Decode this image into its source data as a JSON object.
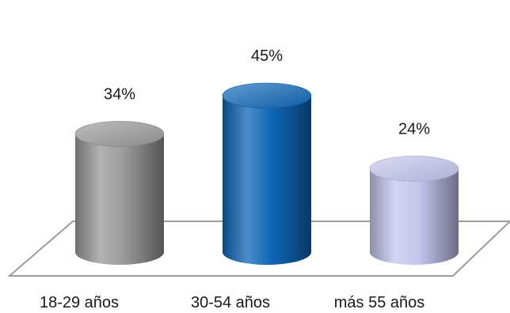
{
  "chart_data": {
    "type": "bar",
    "style": "3d-cylinder",
    "categories": [
      "18-29 años",
      "30-54 años",
      "más 55 años"
    ],
    "values": [
      34,
      45,
      24
    ],
    "value_labels": [
      "34%",
      "45%",
      "24%"
    ],
    "unit": "%",
    "colors": [
      "#9a9a9a",
      "#0f67b8",
      "#c4c6ee"
    ],
    "ylim": [
      0,
      50
    ],
    "grid": false,
    "legend": "none",
    "title": "",
    "xlabel": "",
    "ylabel": ""
  }
}
